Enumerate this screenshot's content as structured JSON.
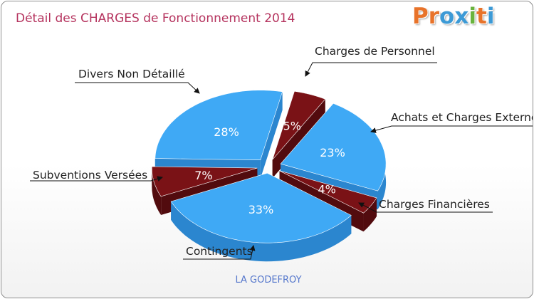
{
  "title": "Détail des CHARGES de Fonctionnement 2014",
  "logo": {
    "text": "Proxiti",
    "letters": [
      "P",
      "r",
      "o",
      "x",
      "i",
      "t",
      "i"
    ],
    "colors": [
      "#e8732a",
      "#e8732a",
      "#3c9ad6",
      "#3c9ad6",
      "#69b33d",
      "#e8732a",
      "#3c9ad6"
    ]
  },
  "footer": "LA GODEFROY",
  "colors": {
    "blue": "#3fa9f5",
    "blue_side": "#2b86cf",
    "red": "#7a1216",
    "red_side": "#520b0e",
    "title": "#b5335e"
  },
  "chart_data": {
    "type": "pie",
    "title": "Détail des CHARGES de Fonctionnement 2014",
    "subtitle": "LA GODEFROY",
    "unit": "%",
    "slices": [
      {
        "label": "Charges de Personnel",
        "value": 5,
        "pct_label": "5%",
        "color": "red"
      },
      {
        "label": "Achats et Charges Externes",
        "value": 23,
        "pct_label": "23%",
        "color": "blue"
      },
      {
        "label": "Charges Financières",
        "value": 4,
        "pct_label": "4%",
        "color": "red"
      },
      {
        "label": "Contingents",
        "value": 33,
        "pct_label": "33%",
        "color": "blue"
      },
      {
        "label": "Subventions Versées",
        "value": 7,
        "pct_label": "7%",
        "color": "red"
      },
      {
        "label": "Divers Non Détaillé",
        "value": 28,
        "pct_label": "28%",
        "color": "blue"
      }
    ]
  }
}
